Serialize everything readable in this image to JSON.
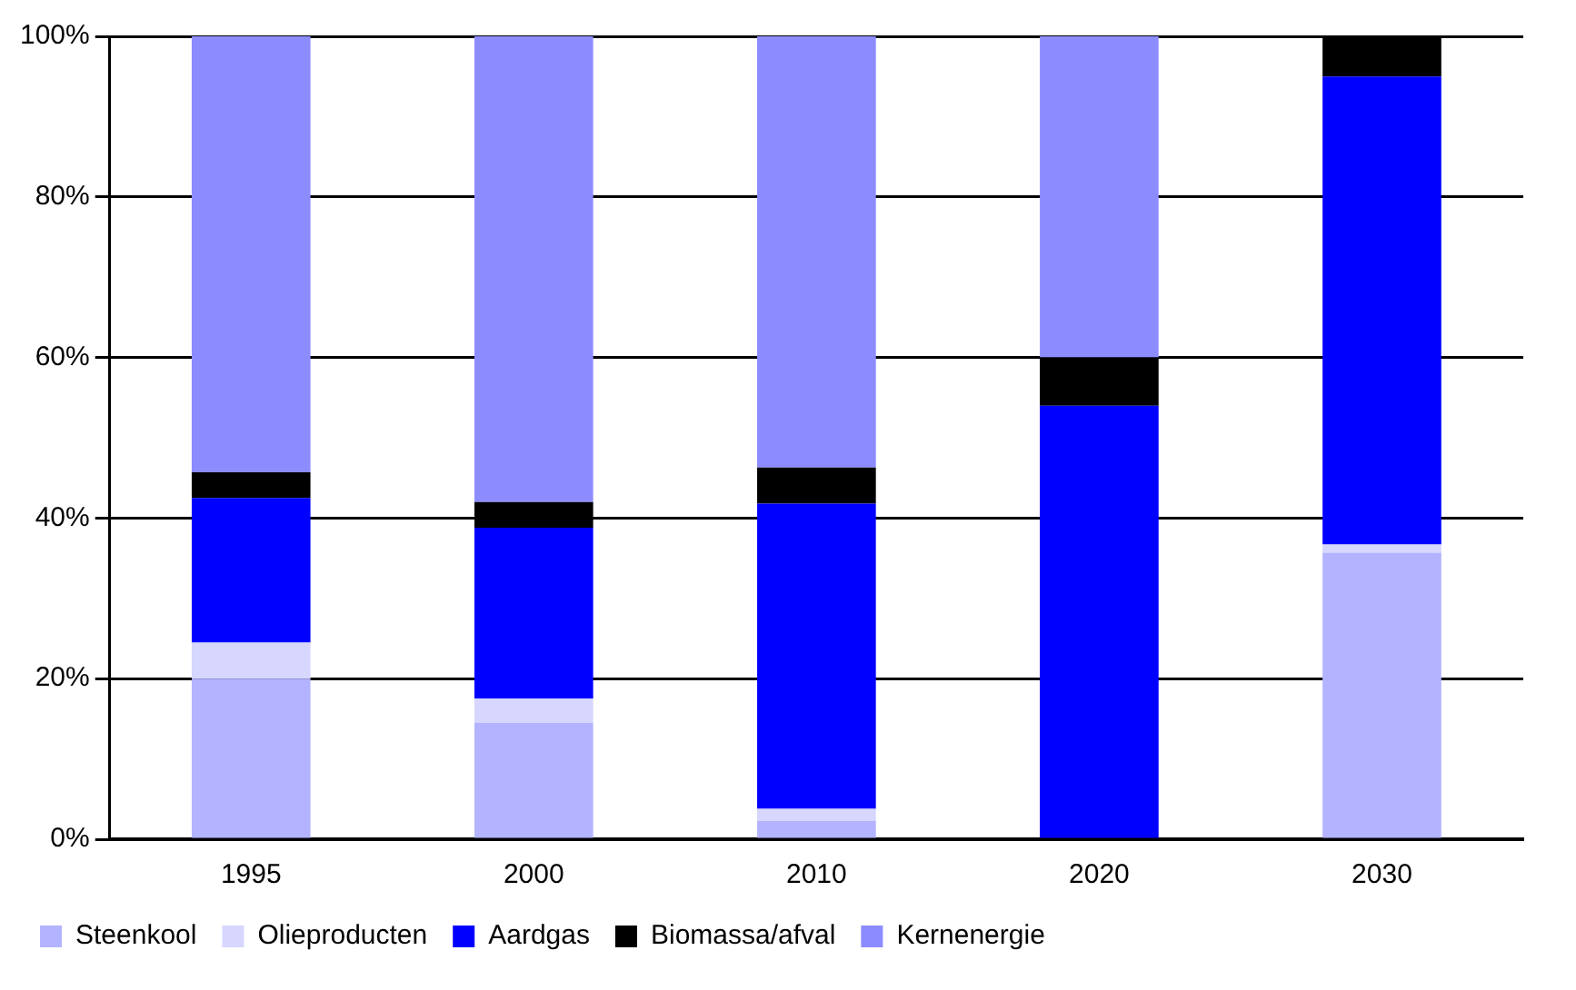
{
  "chart_data": {
    "type": "bar",
    "stacked": true,
    "categories": [
      "1995",
      "2000",
      "2010",
      "2020",
      "2030"
    ],
    "series": [
      {
        "name": "Steenkool",
        "color": "#b3b3ff",
        "values": [
          20,
          14.5,
          2.3,
          0,
          35.7
        ]
      },
      {
        "name": "Olieproducten",
        "color": "#d6d6ff",
        "values": [
          4.5,
          3,
          1.5,
          0,
          1
        ]
      },
      {
        "name": "Aardgas",
        "color": "#0000ff",
        "values": [
          18,
          21.3,
          38,
          54,
          58.3
        ]
      },
      {
        "name": "Biomassa/afval",
        "color": "#000000",
        "values": [
          3.2,
          3.2,
          4.5,
          6,
          5
        ]
      },
      {
        "name": "Kernenergie",
        "color": "#8c8cff",
        "values": [
          54.3,
          58,
          53.7,
          40,
          0
        ]
      }
    ],
    "ylim": [
      0,
      100
    ],
    "yticks": [
      {
        "value": 0,
        "label": "0%"
      },
      {
        "value": 20,
        "label": "20%"
      },
      {
        "value": 40,
        "label": "40%"
      },
      {
        "value": 60,
        "label": "60%"
      },
      {
        "value": 80,
        "label": "80%"
      },
      {
        "value": 100,
        "label": "100%"
      }
    ],
    "grid": "y",
    "legend": "bottom"
  }
}
